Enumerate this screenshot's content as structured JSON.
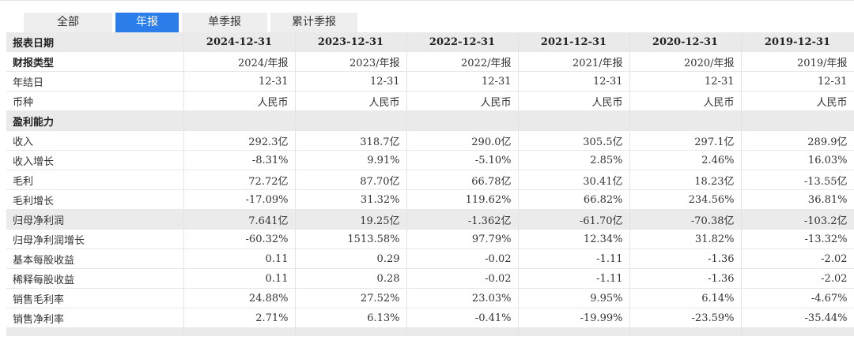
{
  "tabs": [
    {
      "label": "全部",
      "active": false
    },
    {
      "label": "年报",
      "active": true
    },
    {
      "label": "单季报",
      "active": false
    },
    {
      "label": "累计季报",
      "active": false
    }
  ],
  "table": {
    "header": {
      "label": "报表日期",
      "columns": [
        "2024-12-31",
        "2023-12-31",
        "2022-12-31",
        "2021-12-31",
        "2020-12-31",
        "2019-12-31"
      ]
    },
    "rows": [
      {
        "label": "财报类型",
        "values": [
          "2024/年报",
          "2023/年报",
          "2022/年报",
          "2021/年报",
          "2020/年报",
          "2019/年报"
        ],
        "style": "bold"
      },
      {
        "label": "年结日",
        "values": [
          "12-31",
          "12-31",
          "12-31",
          "12-31",
          "12-31",
          "12-31"
        ],
        "style": ""
      },
      {
        "label": "币种",
        "values": [
          "人民币",
          "人民币",
          "人民币",
          "人民币",
          "人民币",
          "人民币"
        ],
        "style": ""
      },
      {
        "label": "盈利能力",
        "values": [],
        "style": "section"
      },
      {
        "label": "收入",
        "values": [
          "292.3亿",
          "318.7亿",
          "290.0亿",
          "305.5亿",
          "297.1亿",
          "289.9亿"
        ],
        "style": ""
      },
      {
        "label": "收入增长",
        "values": [
          "-8.31%",
          "9.91%",
          "-5.10%",
          "2.85%",
          "2.46%",
          "16.03%"
        ],
        "style": ""
      },
      {
        "label": "毛利",
        "values": [
          "72.72亿",
          "87.70亿",
          "66.78亿",
          "30.41亿",
          "18.23亿",
          "-13.55亿"
        ],
        "style": ""
      },
      {
        "label": "毛利增长",
        "values": [
          "-17.09%",
          "31.32%",
          "119.62%",
          "66.82%",
          "234.56%",
          "36.81%"
        ],
        "style": ""
      },
      {
        "label": "归母净利润",
        "values": [
          "7.641亿",
          "19.25亿",
          "-1.362亿",
          "-61.70亿",
          "-70.38亿",
          "-103.2亿"
        ],
        "style": "highlight"
      },
      {
        "label": "归母净利润增长",
        "values": [
          "-60.32%",
          "1513.58%",
          "97.79%",
          "12.34%",
          "31.82%",
          "-13.32%"
        ],
        "style": ""
      },
      {
        "label": "基本每股收益",
        "values": [
          "0.11",
          "0.29",
          "-0.02",
          "-1.11",
          "-1.36",
          "-2.02"
        ],
        "style": ""
      },
      {
        "label": "稀释每股收益",
        "values": [
          "0.11",
          "0.28",
          "-0.02",
          "-1.11",
          "-1.36",
          "-2.02"
        ],
        "style": ""
      },
      {
        "label": "销售毛利率",
        "values": [
          "24.88%",
          "27.52%",
          "23.03%",
          "9.95%",
          "6.14%",
          "-4.67%"
        ],
        "style": ""
      },
      {
        "label": "销售净利率",
        "values": [
          "2.71%",
          "6.13%",
          "-0.41%",
          "-19.99%",
          "-23.59%",
          "-35.44%"
        ],
        "style": ""
      }
    ]
  }
}
